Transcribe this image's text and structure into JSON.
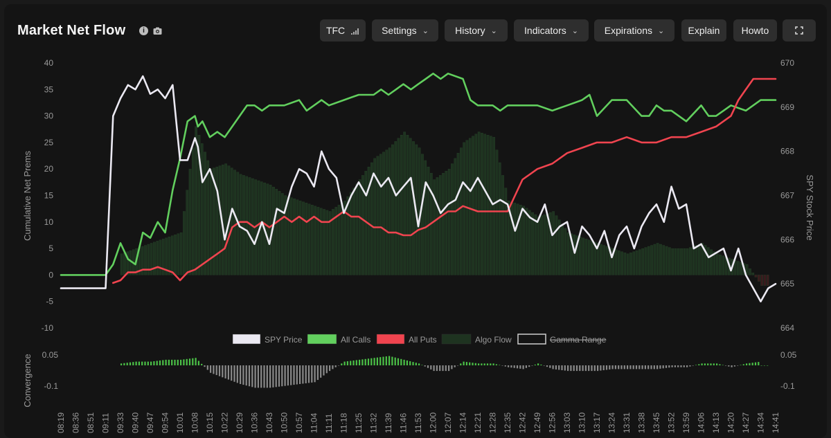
{
  "header": {
    "title": "Market Net Flow",
    "buttons": {
      "tfc": "TFC",
      "settings": "Settings",
      "history": "History",
      "indicators": "Indicators",
      "expirations": "Expirations",
      "explain": "Explain",
      "howto": "Howto"
    }
  },
  "colors": {
    "spy": "#ebe9f2",
    "calls": "#62cf5e",
    "puts": "#f0444f",
    "algo": "#1e3320",
    "conv_pos": "#4bc247",
    "conv_neg": "#8a8a8a",
    "axis_text": "#9a9a9a"
  },
  "chart_data": {
    "type": "line",
    "title": "Market Net Flow",
    "ylabel": "Cumulative Net Prems",
    "y2label": "SPY Stock Price",
    "ylim": [
      -10,
      40
    ],
    "y_ticks": [
      40,
      35,
      30,
      25,
      20,
      15,
      10,
      5,
      0,
      -5,
      -10
    ],
    "y2lim": [
      664,
      670
    ],
    "y2_ticks": [
      670,
      669,
      668,
      667,
      666,
      665,
      664
    ],
    "convergence_label": "Convergence",
    "convergence_ticks": [
      "0.05",
      "-0.1"
    ],
    "x_ticks": [
      "08:19",
      "08:36",
      "08:51",
      "09:11",
      "09:33",
      "09:40",
      "09:47",
      "09:54",
      "10:01",
      "10:08",
      "10:15",
      "10:22",
      "10:29",
      "10:36",
      "10:43",
      "10:50",
      "10:57",
      "11:04",
      "11:11",
      "11:18",
      "11:25",
      "11:32",
      "11:39",
      "11:46",
      "11:53",
      "12:00",
      "12:07",
      "12:14",
      "12:21",
      "12:28",
      "12:35",
      "12:42",
      "12:49",
      "12:56",
      "13:03",
      "13:10",
      "13:17",
      "13:24",
      "13:31",
      "13:38",
      "13:45",
      "13:52",
      "13:59",
      "14:06",
      "14:13",
      "14:20",
      "14:27",
      "14:34",
      "14:41"
    ],
    "legend": [
      "SPY Price",
      "All Calls",
      "All Puts",
      "Algo Flow",
      "Gamma Range"
    ],
    "legend_position": "bottom",
    "series": [
      {
        "name": "All Calls",
        "axis": "left",
        "x": [
          0,
          1,
          2,
          3,
          3.5,
          4,
          4.5,
          5,
          5.5,
          6,
          6.5,
          7,
          7.5,
          8,
          8.5,
          9,
          9.2,
          9.5,
          10,
          10.5,
          11,
          11.5,
          12,
          12.5,
          13,
          13.5,
          14,
          15,
          16,
          16.5,
          17,
          17.5,
          18,
          19,
          20,
          21,
          21.5,
          22,
          22.5,
          23,
          23.5,
          24,
          24.5,
          25,
          25.5,
          26,
          27,
          27.5,
          28,
          28.5,
          29,
          29.5,
          30,
          31,
          32,
          33,
          34,
          35,
          35.5,
          36,
          37,
          38,
          39,
          39.5,
          40,
          40.5,
          41,
          42,
          43,
          43.5,
          44,
          44.5,
          45,
          46,
          47,
          48
        ],
        "y": [
          0,
          0,
          0,
          0,
          2,
          6,
          3,
          2,
          8,
          7,
          10,
          8,
          16,
          22,
          29,
          30,
          28,
          29,
          26,
          27,
          26,
          28,
          30,
          32,
          32,
          31,
          32,
          32,
          33,
          31,
          32,
          33,
          32,
          33,
          34,
          34,
          35,
          34,
          35,
          36,
          35,
          36,
          37,
          38,
          37,
          38,
          37,
          33,
          32,
          32,
          32,
          31,
          32,
          32,
          32,
          31,
          32,
          33,
          34,
          30,
          33,
          33,
          30,
          30,
          32,
          31,
          31,
          29,
          32,
          30,
          30,
          31,
          32,
          31,
          33,
          33
        ]
      },
      {
        "name": "All Puts",
        "axis": "left",
        "x": [
          0,
          1,
          2,
          3,
          3.5,
          4,
          4.5,
          5,
          5.5,
          6,
          6.5,
          7,
          7.5,
          8,
          8.5,
          9,
          9.5,
          10,
          10.5,
          11,
          11.5,
          12,
          12.5,
          13,
          13.5,
          14,
          14.5,
          15,
          15.5,
          16,
          16.5,
          17,
          17.5,
          18,
          18.5,
          19,
          19.5,
          20,
          20.5,
          21,
          21.5,
          22,
          22.5,
          23,
          23.5,
          24,
          24.5,
          25,
          25.5,
          26,
          26.5,
          27,
          28,
          29,
          30,
          31,
          32,
          33,
          34,
          35,
          36,
          37,
          38,
          39,
          40,
          41,
          42,
          43,
          44,
          45,
          45.5,
          46,
          46.5,
          47,
          48
        ],
        "y": [
          null,
          null,
          null,
          null,
          -1.5,
          -1,
          0.5,
          0.5,
          1,
          1,
          1.5,
          1,
          0.5,
          -1,
          0.5,
          1,
          2,
          3,
          4,
          5,
          9,
          10,
          10,
          9,
          10,
          9,
          10,
          11,
          10,
          11,
          10,
          11,
          10,
          10,
          11,
          12,
          11,
          11,
          10,
          9,
          9,
          8,
          8,
          7.5,
          7.5,
          8.5,
          9,
          10,
          11,
          12,
          12,
          13,
          12,
          12,
          12,
          18,
          20,
          21,
          23,
          24,
          25,
          25,
          26,
          25,
          25,
          26,
          26,
          27,
          28,
          30,
          33,
          35,
          37,
          37,
          37
        ]
      },
      {
        "name": "SPY Price",
        "axis": "right",
        "x": [
          0,
          1,
          2,
          3,
          3.5,
          4,
          4.5,
          5,
          5.5,
          6,
          6.5,
          7,
          7.5,
          8,
          8.5,
          9,
          9.2,
          9.5,
          10,
          10.5,
          11,
          11.5,
          12,
          12.5,
          13,
          13.5,
          14,
          14.5,
          15,
          15.5,
          16,
          16.5,
          17,
          17.5,
          18,
          18.5,
          19,
          19.5,
          20,
          20.5,
          21,
          21.5,
          22,
          22.5,
          23,
          23.5,
          24,
          24.5,
          25,
          25.5,
          26,
          26.5,
          27,
          27.5,
          28,
          28.5,
          29,
          29.5,
          30,
          30.5,
          31,
          31.5,
          32,
          32.5,
          33,
          33.5,
          34,
          34.5,
          35,
          35.5,
          36,
          36.5,
          37,
          37.5,
          38,
          38.5,
          39,
          39.5,
          40,
          40.5,
          41,
          41.5,
          42,
          42.5,
          43,
          43.5,
          44,
          44.5,
          45,
          45.5,
          46,
          46.5,
          47,
          47.5,
          48
        ],
        "y": [
          664.9,
          664.9,
          664.9,
          664.9,
          668.8,
          669.2,
          669.5,
          669.4,
          669.7,
          669.3,
          669.4,
          669.2,
          669.5,
          667.8,
          667.8,
          668.3,
          668.1,
          667.3,
          667.6,
          667.1,
          666,
          666.7,
          666.3,
          666.2,
          665.9,
          666.4,
          665.9,
          666.7,
          666.6,
          667.2,
          667.6,
          667.5,
          667.2,
          668.0,
          667.6,
          667.4,
          666.6,
          667.0,
          667.3,
          667.0,
          667.5,
          667.2,
          667.4,
          667.0,
          667.2,
          667.4,
          666.3,
          667.3,
          667.0,
          666.6,
          666.8,
          666.9,
          667.3,
          667.1,
          667.4,
          667.1,
          666.8,
          666.9,
          666.8,
          666.2,
          666.7,
          666.5,
          666.4,
          666.8,
          666.1,
          666.3,
          666.4,
          665.7,
          666.3,
          666.1,
          665.8,
          666.2,
          665.6,
          666.1,
          666.3,
          665.8,
          666.3,
          666.6,
          666.8,
          666.4,
          667.2,
          666.7,
          666.8,
          665.8,
          665.9,
          665.6,
          665.7,
          665.8,
          665.3,
          665.8,
          665.2,
          664.9,
          664.6,
          664.9,
          665.0
        ]
      },
      {
        "name": "Algo Flow",
        "axis": "left",
        "type": "bar",
        "x": [
          4,
          6,
          8,
          9,
          10,
          11,
          12,
          13,
          14,
          15,
          16,
          17,
          18,
          19,
          20,
          21,
          22,
          23,
          24,
          25,
          26,
          27,
          28,
          29,
          30,
          31,
          32,
          33,
          34,
          35,
          36,
          37,
          38,
          39,
          40,
          41,
          42,
          43,
          44,
          45,
          46,
          47
        ],
        "y": [
          4,
          6,
          8,
          28,
          20,
          21,
          19,
          18,
          17,
          15,
          14,
          13,
          12,
          14,
          18,
          22,
          24,
          27,
          24,
          18,
          20,
          25,
          27,
          26,
          14,
          13,
          11,
          12,
          8,
          7,
          6,
          5,
          4,
          5,
          6,
          5,
          5,
          6,
          4,
          3,
          2,
          -2
        ]
      },
      {
        "name": "Convergence",
        "axis": "convergence",
        "type": "bar",
        "x": [
          4,
          5,
          6,
          7,
          8,
          9,
          10,
          11,
          12,
          13,
          14,
          15,
          16,
          17,
          18,
          19,
          20,
          21,
          22,
          23,
          24,
          25,
          26,
          27,
          28,
          29,
          30,
          31,
          32,
          33,
          34,
          35,
          36,
          37,
          38,
          39,
          40,
          41,
          42,
          43,
          44,
          45,
          46,
          47
        ],
        "y": [
          0.01,
          0.02,
          0.02,
          0.03,
          0.03,
          0.04,
          -0.04,
          -0.07,
          -0.1,
          -0.12,
          -0.12,
          -0.11,
          -0.1,
          -0.09,
          -0.03,
          0.02,
          0.03,
          0.04,
          0.05,
          0.03,
          0.01,
          -0.03,
          -0.03,
          0.02,
          0.01,
          0.01,
          -0.01,
          -0.02,
          0.01,
          -0.02,
          -0.03,
          -0.03,
          -0.03,
          -0.02,
          -0.02,
          -0.02,
          -0.02,
          -0.01,
          -0.01,
          0.01,
          0.01,
          -0.01,
          0.01,
          0.02
        ]
      }
    ]
  }
}
